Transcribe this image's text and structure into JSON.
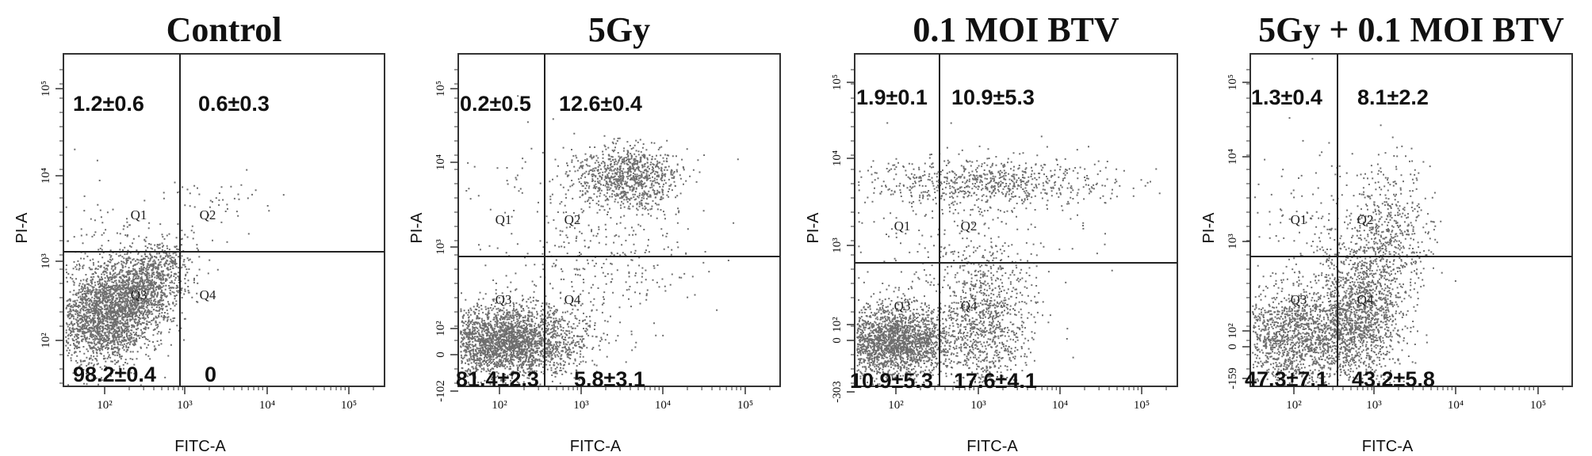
{
  "chart_data": [
    {
      "type": "scatter",
      "title": "Control",
      "xlabel": "FITC-A",
      "ylabel": "PI-A",
      "x_ticks": [
        "10²",
        "10³",
        "10⁴",
        "10⁵"
      ],
      "y_ticks": [
        "10²",
        "10³",
        "10⁴",
        "10⁵"
      ],
      "quadrant_labels": [
        "Q1",
        "Q2",
        "Q3",
        "Q4"
      ],
      "quadrant_values": {
        "Q1": "1.2±0.6",
        "Q2": "0.6±0.3",
        "Q3": "98.2±0.4",
        "Q4": "0"
      },
      "scale": "log",
      "point_color": "#4a4a4a"
    },
    {
      "type": "scatter",
      "title": "5Gy",
      "xlabel": "FITC-A",
      "ylabel": "PI-A",
      "x_ticks": [
        "10²",
        "10³",
        "10⁴",
        "10⁵"
      ],
      "y_ticks": [
        "-102",
        "0",
        "10²",
        "10³",
        "10⁴",
        "10⁵"
      ],
      "quadrant_labels": [
        "Q1",
        "Q2",
        "Q3",
        "Q4"
      ],
      "quadrant_values": {
        "Q1": "0.2±0.5",
        "Q2": "12.6±0.4",
        "Q3": "81.4±2.3",
        "Q4": "5.8±3.1"
      },
      "scale": "log",
      "point_color": "#4a4a4a"
    },
    {
      "type": "scatter",
      "title": "0.1 MOI BTV",
      "xlabel": "FITC-A",
      "ylabel": "PI-A",
      "x_ticks": [
        "10²",
        "10³",
        "10⁴",
        "10⁵"
      ],
      "y_ticks": [
        "-303",
        "0",
        "10²",
        "10³",
        "10⁴",
        "10⁵"
      ],
      "quadrant_labels": [
        "Q1",
        "Q2",
        "Q3",
        "Q4"
      ],
      "quadrant_values": {
        "Q1": "1.9±0.1",
        "Q2": "10.9±5.3",
        "Q3": "10.9±5.3",
        "Q4": "17.6±4.1"
      },
      "scale": "log",
      "point_color": "#4a4a4a"
    },
    {
      "type": "scatter",
      "title": "5Gy + 0.1 MOI BTV",
      "xlabel": "FITC-A",
      "ylabel": "PI-A",
      "x_ticks": [
        "10²",
        "10³",
        "10⁴",
        "10⁵"
      ],
      "y_ticks": [
        "-159",
        "0",
        "10²",
        "10³",
        "10⁴",
        "10⁵"
      ],
      "quadrant_labels": [
        "Q1",
        "Q2",
        "Q3",
        "Q4"
      ],
      "quadrant_values": {
        "Q1": "1.3±0.4",
        "Q2": "8.1±2.2",
        "Q3": "47.3±7.1",
        "Q4": "43.2±5.8"
      },
      "scale": "log",
      "point_color": "#4a4a4a"
    }
  ]
}
